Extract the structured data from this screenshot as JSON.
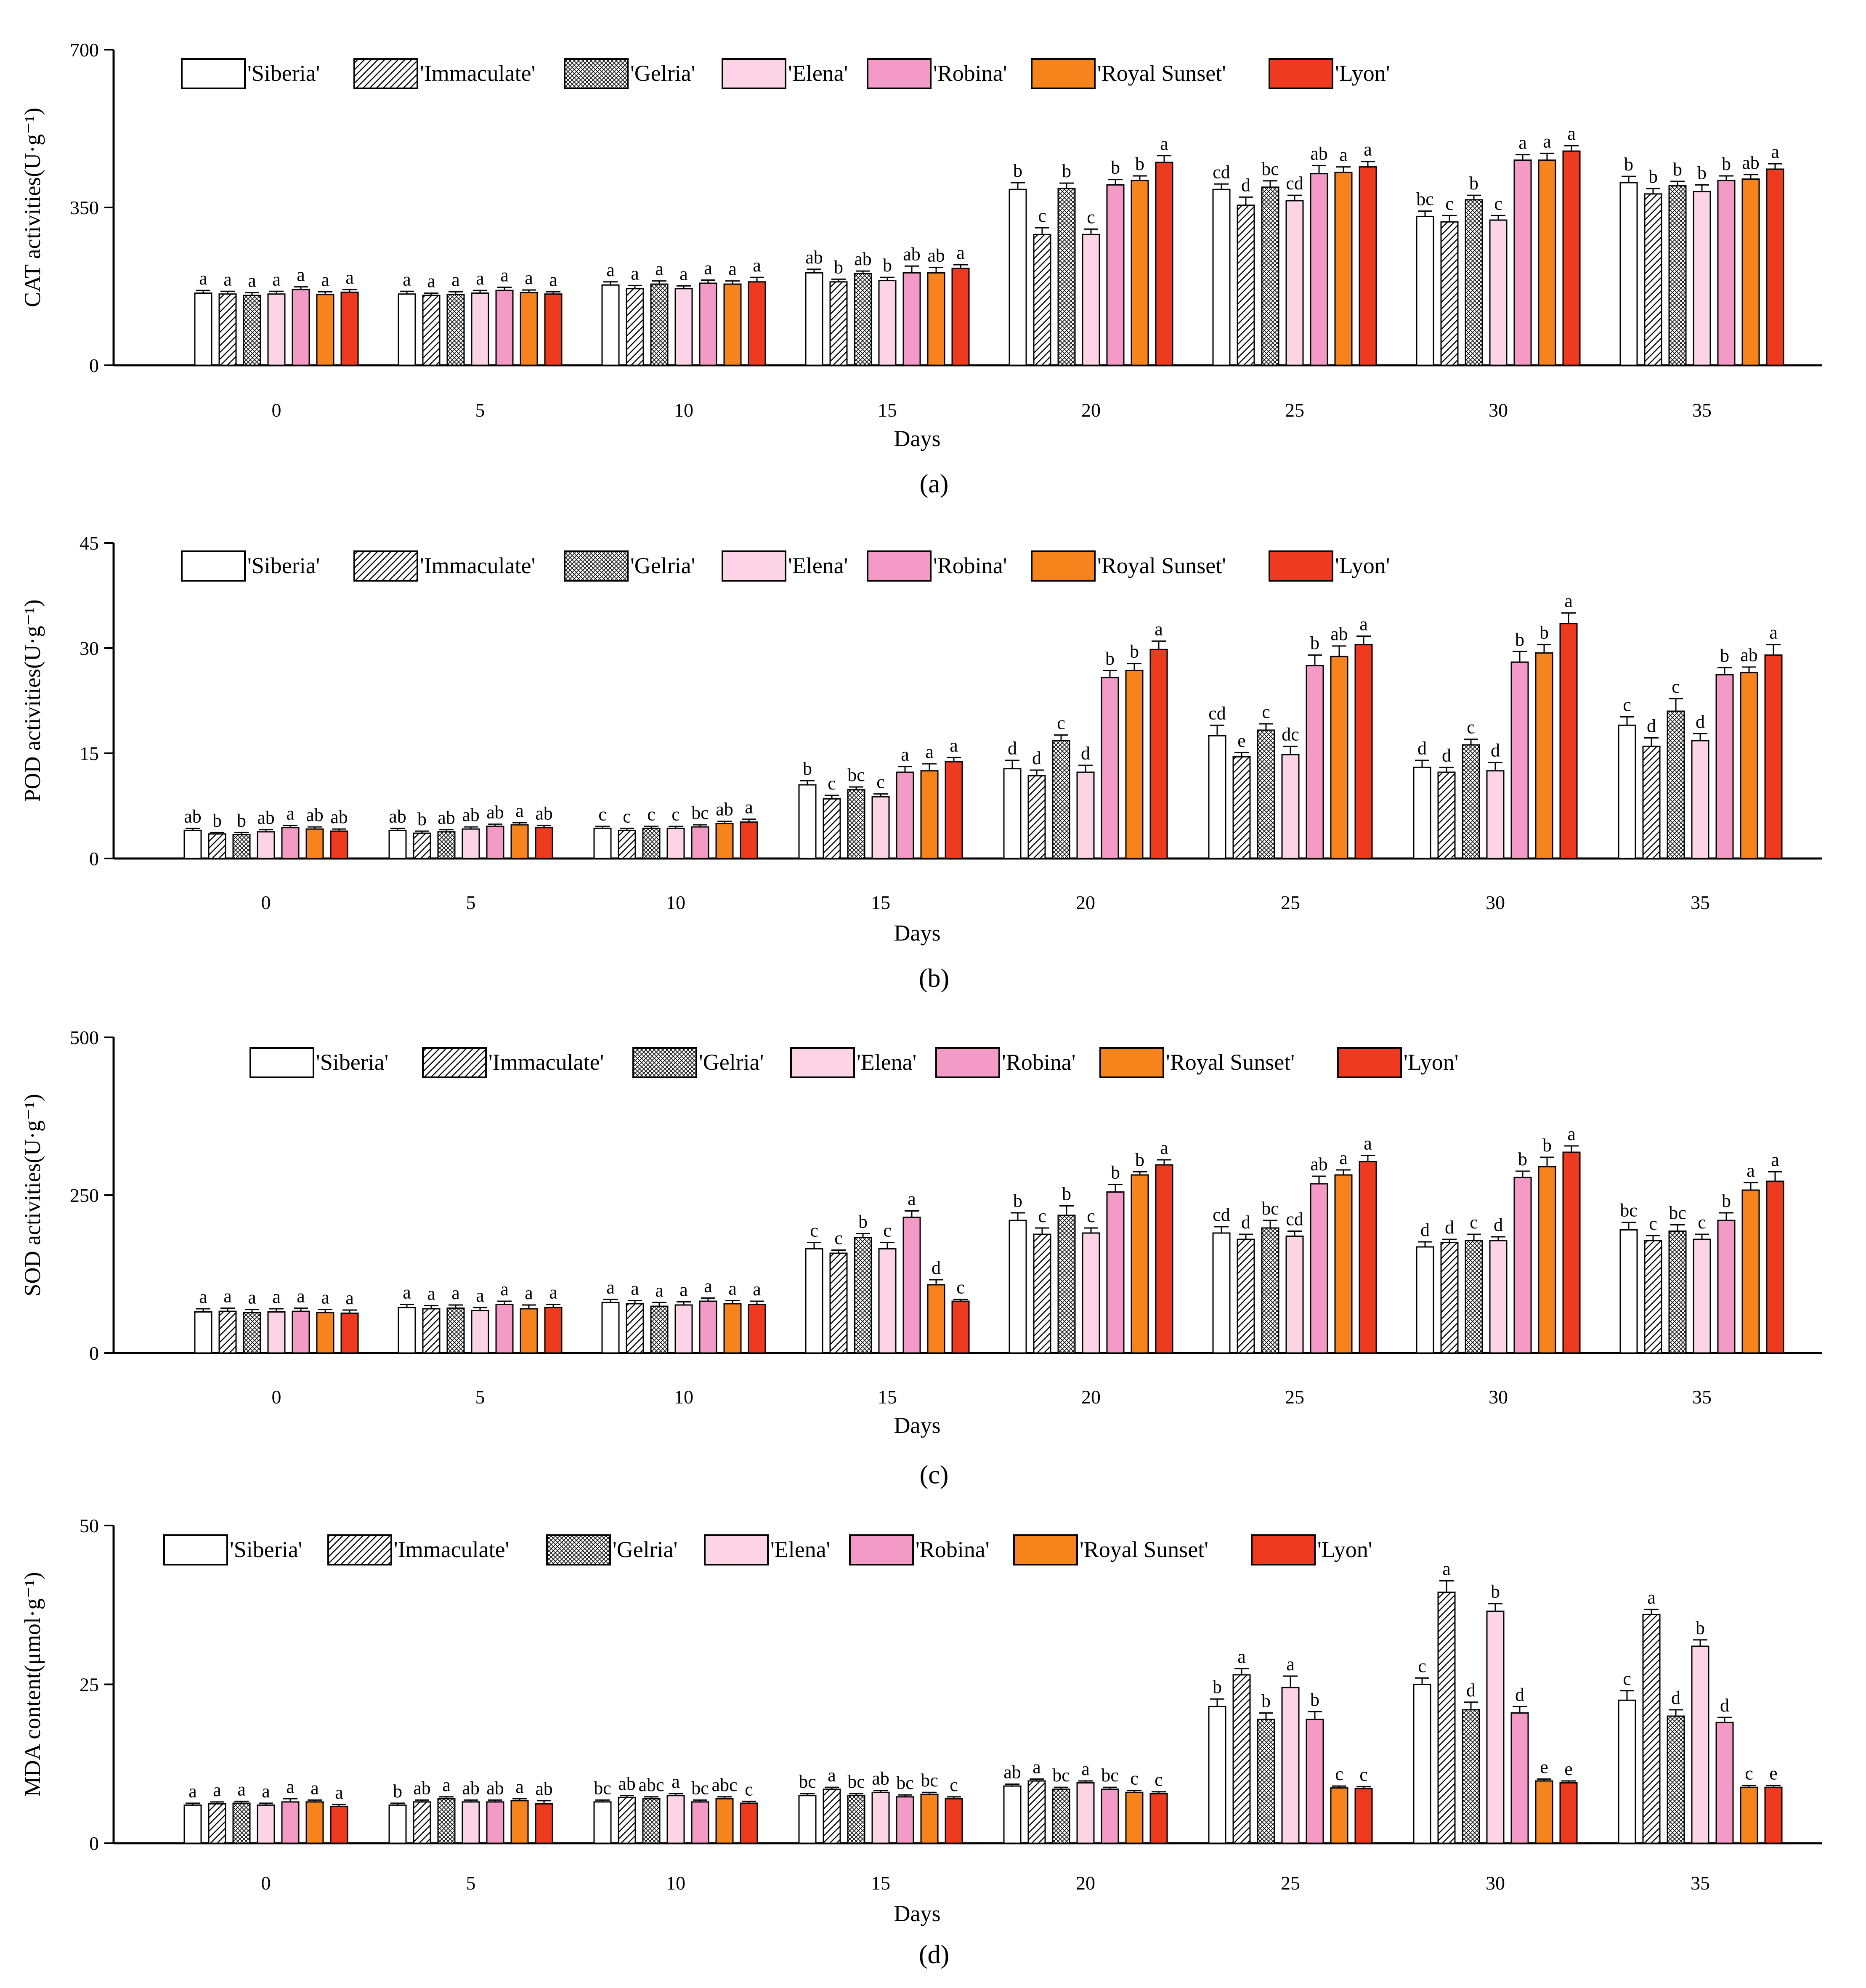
{
  "legend_labels": [
    "'Siberia'",
    "'Immaculate'",
    "'Gelria'",
    "'Elena'",
    "'Robina'",
    "'Royal Sunset'",
    "'Lyon'"
  ],
  "series_style": [
    {
      "fill": "#ffffff",
      "pattern": "none"
    },
    {
      "fill": "#ffffff",
      "pattern": "hatch"
    },
    {
      "fill": "#ffffff",
      "pattern": "cross"
    },
    {
      "fill": "#fcd4e6",
      "pattern": "none"
    },
    {
      "fill": "#f39bc6",
      "pattern": "none"
    },
    {
      "fill": "#f7831c",
      "pattern": "none"
    },
    {
      "fill": "#ee3b1f",
      "pattern": "none"
    }
  ],
  "chart_data": [
    {
      "type": "bar",
      "panel_label": "(a)",
      "ylabel": "CAT activities(U·g⁻¹)",
      "xlabel": "Days",
      "ylim": [
        0,
        700
      ],
      "yticks": [
        "0",
        "350",
        "700"
      ],
      "categories": [
        "0",
        "5",
        "10",
        "15",
        "20",
        "25",
        "30",
        "35"
      ],
      "series": [
        {
          "name": "'Siberia'",
          "values": [
            160,
            158,
            178,
            205,
            390,
            390,
            330,
            405
          ],
          "errors": [
            6,
            6,
            7,
            8,
            15,
            12,
            12,
            14
          ],
          "letters": [
            "a",
            "a",
            "a",
            "ab",
            "b",
            "cd",
            "bc",
            "b"
          ]
        },
        {
          "name": "'Immaculate'",
          "values": [
            158,
            155,
            170,
            185,
            290,
            355,
            318,
            380
          ],
          "errors": [
            6,
            5,
            7,
            6,
            15,
            18,
            14,
            12
          ],
          "letters": [
            "a",
            "a",
            "a",
            "b",
            "c",
            "d",
            "c",
            "b"
          ]
        },
        {
          "name": "'Gelria'",
          "values": [
            155,
            157,
            180,
            203,
            392,
            395,
            367,
            398
          ],
          "errors": [
            6,
            6,
            7,
            6,
            12,
            14,
            10,
            10
          ],
          "letters": [
            "a",
            "a",
            "a",
            "ab",
            "b",
            "bc",
            "b",
            "b"
          ]
        },
        {
          "name": "'Elena'",
          "values": [
            158,
            160,
            170,
            188,
            290,
            365,
            322,
            385
          ],
          "errors": [
            6,
            6,
            6,
            7,
            12,
            12,
            10,
            15
          ],
          "letters": [
            "a",
            "a",
            "a",
            "b",
            "c",
            "cd",
            "c",
            "b"
          ]
        },
        {
          "name": "'Robina'",
          "values": [
            168,
            166,
            182,
            205,
            400,
            425,
            455,
            410
          ],
          "errors": [
            6,
            7,
            7,
            15,
            12,
            18,
            12,
            10
          ],
          "letters": [
            "a",
            "a",
            "a",
            "ab",
            "b",
            "ab",
            "a",
            "b"
          ]
        },
        {
          "name": "'Royal Sunset'",
          "values": [
            157,
            161,
            180,
            205,
            410,
            428,
            455,
            413
          ],
          "errors": [
            6,
            6,
            7,
            12,
            10,
            12,
            15,
            10
          ],
          "letters": [
            "a",
            "a",
            "a",
            "ab",
            "b",
            "a",
            "a",
            "ab"
          ]
        },
        {
          "name": "'Lyon'",
          "values": [
            162,
            158,
            185,
            215,
            450,
            440,
            475,
            435
          ],
          "errors": [
            6,
            5,
            10,
            8,
            15,
            12,
            12,
            12
          ],
          "letters": [
            "a",
            "a",
            "a",
            "a",
            "a",
            "a",
            "a",
            "a"
          ]
        }
      ]
    },
    {
      "type": "bar",
      "panel_label": "(b)",
      "ylabel": "POD activities(U·g⁻¹)",
      "xlabel": "Days",
      "ylim": [
        0,
        45
      ],
      "yticks": [
        "0",
        "15",
        "30",
        "45"
      ],
      "categories": [
        "0",
        "5",
        "10",
        "15",
        "20",
        "25",
        "30",
        "35"
      ],
      "series": [
        {
          "name": "'Siberia'",
          "values": [
            4.0,
            4.0,
            4.3,
            10.5,
            12.8,
            17.5,
            13.0,
            19.0
          ],
          "errors": [
            0.3,
            0.3,
            0.3,
            0.6,
            1.2,
            1.5,
            1.0,
            1.2
          ],
          "letters": [
            "ab",
            "ab",
            "c",
            "b",
            "d",
            "cd",
            "d",
            "c"
          ]
        },
        {
          "name": "'Immaculate'",
          "values": [
            3.5,
            3.6,
            4.0,
            8.5,
            11.8,
            14.5,
            12.3,
            16.0
          ],
          "errors": [
            0.2,
            0.3,
            0.3,
            0.5,
            0.8,
            0.6,
            0.7,
            1.2
          ],
          "letters": [
            "b",
            "b",
            "c",
            "c",
            "d",
            "e",
            "d",
            "d"
          ]
        },
        {
          "name": "'Gelria'",
          "values": [
            3.4,
            3.8,
            4.3,
            9.8,
            16.8,
            18.3,
            16.2,
            21.0
          ],
          "errors": [
            0.3,
            0.3,
            0.3,
            0.4,
            0.8,
            0.9,
            0.8,
            1.8
          ],
          "letters": [
            "b",
            "ab",
            "c",
            "bc",
            "c",
            "c",
            "c",
            "c"
          ]
        },
        {
          "name": "'Elena'",
          "values": [
            3.8,
            4.2,
            4.3,
            8.8,
            12.3,
            14.8,
            12.5,
            16.8
          ],
          "errors": [
            0.3,
            0.3,
            0.3,
            0.4,
            1.0,
            1.2,
            1.2,
            1.0
          ],
          "letters": [
            "ab",
            "ab",
            "c",
            "c",
            "d",
            "dc",
            "d",
            "d"
          ]
        },
        {
          "name": "'Robina'",
          "values": [
            4.4,
            4.6,
            4.5,
            12.3,
            25.8,
            27.5,
            28.0,
            26.2
          ],
          "errors": [
            0.3,
            0.3,
            0.3,
            0.8,
            1.0,
            1.5,
            1.5,
            1.0
          ],
          "letters": [
            "a",
            "ab",
            "bc",
            "a",
            "b",
            "b",
            "b",
            "b"
          ]
        },
        {
          "name": "'Royal Sunset'",
          "values": [
            4.2,
            4.8,
            5.0,
            12.5,
            26.8,
            28.8,
            29.3,
            26.5
          ],
          "errors": [
            0.3,
            0.3,
            0.3,
            1.0,
            1.0,
            1.5,
            1.2,
            0.8
          ],
          "letters": [
            "ab",
            "a",
            "ab",
            "a",
            "b",
            "ab",
            "b",
            "ab"
          ]
        },
        {
          "name": "'Lyon'",
          "values": [
            3.9,
            4.4,
            5.2,
            13.8,
            29.8,
            30.5,
            33.5,
            29.0
          ],
          "errors": [
            0.3,
            0.3,
            0.4,
            0.6,
            1.2,
            1.2,
            1.5,
            1.5
          ],
          "letters": [
            "ab",
            "ab",
            "a",
            "a",
            "a",
            "a",
            "a",
            "a"
          ]
        }
      ]
    },
    {
      "type": "bar",
      "panel_label": "(c)",
      "ylabel": "SOD activities(U·g⁻¹)",
      "xlabel": "Days",
      "ylim": [
        0,
        500
      ],
      "yticks": [
        "0",
        "250",
        "500"
      ],
      "categories": [
        "0",
        "5",
        "10",
        "15",
        "20",
        "25",
        "30",
        "35"
      ],
      "series": [
        {
          "name": "'Siberia'",
          "values": [
            65,
            72,
            80,
            165,
            210,
            190,
            168,
            195
          ],
          "errors": [
            5,
            5,
            5,
            10,
            12,
            10,
            8,
            12
          ],
          "letters": [
            "a",
            "a",
            "a",
            "c",
            "b",
            "cd",
            "d",
            "bc"
          ]
        },
        {
          "name": "'Immaculate'",
          "values": [
            66,
            70,
            78,
            158,
            188,
            180,
            175,
            178
          ],
          "errors": [
            5,
            5,
            5,
            5,
            10,
            8,
            5,
            8
          ],
          "letters": [
            "a",
            "a",
            "a",
            "c",
            "c",
            "d",
            "d",
            "c"
          ]
        },
        {
          "name": "'Gelria'",
          "values": [
            64,
            71,
            74,
            183,
            218,
            198,
            178,
            193
          ],
          "errors": [
            5,
            5,
            6,
            6,
            15,
            12,
            10,
            10
          ],
          "letters": [
            "a",
            "a",
            "a",
            "b",
            "b",
            "bc",
            "c",
            "bc"
          ]
        },
        {
          "name": "'Elena'",
          "values": [
            65,
            67,
            76,
            165,
            190,
            185,
            178,
            180
          ],
          "errors": [
            5,
            5,
            5,
            10,
            8,
            8,
            6,
            8
          ],
          "letters": [
            "a",
            "a",
            "a",
            "c",
            "c",
            "cd",
            "d",
            "c"
          ]
        },
        {
          "name": "'Robina'",
          "values": [
            66,
            77,
            82,
            215,
            255,
            268,
            278,
            210
          ],
          "errors": [
            5,
            5,
            5,
            10,
            12,
            12,
            10,
            12
          ],
          "letters": [
            "a",
            "a",
            "a",
            "a",
            "b",
            "ab",
            "b",
            "b"
          ]
        },
        {
          "name": "'Royal Sunset'",
          "values": [
            64,
            70,
            78,
            108,
            282,
            282,
            295,
            258
          ],
          "errors": [
            5,
            6,
            5,
            8,
            5,
            8,
            15,
            12
          ],
          "letters": [
            "a",
            "a",
            "a",
            "d",
            "b",
            "a",
            "b",
            "a"
          ]
        },
        {
          "name": "'Lyon'",
          "values": [
            63,
            72,
            77,
            82,
            298,
            303,
            318,
            272
          ],
          "errors": [
            5,
            5,
            5,
            3,
            8,
            10,
            10,
            15
          ],
          "letters": [
            "a",
            "a",
            "a",
            "c",
            "a",
            "a",
            "a",
            "a"
          ]
        }
      ]
    },
    {
      "type": "bar",
      "panel_label": "(d)",
      "ylabel": "MDA content(μmol·g⁻¹)",
      "xlabel": "Days",
      "ylim": [
        0,
        50
      ],
      "yticks": [
        "0",
        "25",
        "50"
      ],
      "categories": [
        "0",
        "5",
        "10",
        "15",
        "20",
        "25",
        "30",
        "35"
      ],
      "series": [
        {
          "name": "'Siberia'",
          "values": [
            6.0,
            6.0,
            6.5,
            7.5,
            9.0,
            21.5,
            25.0,
            22.5
          ],
          "errors": [
            0.3,
            0.3,
            0.3,
            0.3,
            0.3,
            1.2,
            1.0,
            1.5
          ],
          "letters": [
            "a",
            "b",
            "bc",
            "bc",
            "ab",
            "b",
            "c",
            "c"
          ]
        },
        {
          "name": "'Immaculate'",
          "values": [
            6.2,
            6.5,
            7.2,
            8.5,
            9.8,
            26.5,
            39.5,
            36.0
          ],
          "errors": [
            0.3,
            0.3,
            0.3,
            0.3,
            0.3,
            1.0,
            1.8,
            0.8
          ],
          "letters": [
            "a",
            "ab",
            "ab",
            "a",
            "a",
            "a",
            "a",
            "a"
          ]
        },
        {
          "name": "'Gelria'",
          "values": [
            6.3,
            7.0,
            7.0,
            7.5,
            8.5,
            19.5,
            21.0,
            20.0
          ],
          "errors": [
            0.3,
            0.3,
            0.3,
            0.3,
            0.3,
            1.0,
            1.2,
            1.0
          ],
          "letters": [
            "a",
            "a",
            "abc",
            "bc",
            "bc",
            "b",
            "d",
            "d"
          ]
        },
        {
          "name": "'Elena'",
          "values": [
            6.0,
            6.5,
            7.5,
            8.0,
            9.5,
            24.5,
            36.5,
            31.0
          ],
          "errors": [
            0.3,
            0.3,
            0.3,
            0.3,
            0.3,
            1.8,
            1.2,
            1.0
          ],
          "letters": [
            "a",
            "ab",
            "a",
            "ab",
            "a",
            "a",
            "b",
            "b"
          ]
        },
        {
          "name": "'Robina'",
          "values": [
            6.5,
            6.5,
            6.5,
            7.3,
            8.5,
            19.5,
            20.5,
            19.0
          ],
          "errors": [
            0.5,
            0.3,
            0.3,
            0.3,
            0.3,
            1.2,
            1.0,
            0.8
          ],
          "letters": [
            "a",
            "ab",
            "bc",
            "bc",
            "bc",
            "b",
            "d",
            "d"
          ]
        },
        {
          "name": "'Royal Sunset'",
          "values": [
            6.5,
            6.7,
            7.0,
            7.7,
            8.0,
            8.7,
            9.8,
            8.8
          ],
          "errors": [
            0.3,
            0.3,
            0.3,
            0.3,
            0.3,
            0.3,
            0.3,
            0.3
          ],
          "letters": [
            "a",
            "a",
            "abc",
            "bc",
            "c",
            "c",
            "e",
            "c"
          ]
        },
        {
          "name": "'Lyon'",
          "values": [
            5.8,
            6.2,
            6.3,
            7.0,
            7.8,
            8.6,
            9.5,
            8.8
          ],
          "errors": [
            0.3,
            0.5,
            0.3,
            0.3,
            0.3,
            0.3,
            0.3,
            0.3
          ],
          "letters": [
            "a",
            "ab",
            "c",
            "c",
            "c",
            "c",
            "e",
            "e"
          ]
        }
      ]
    }
  ]
}
